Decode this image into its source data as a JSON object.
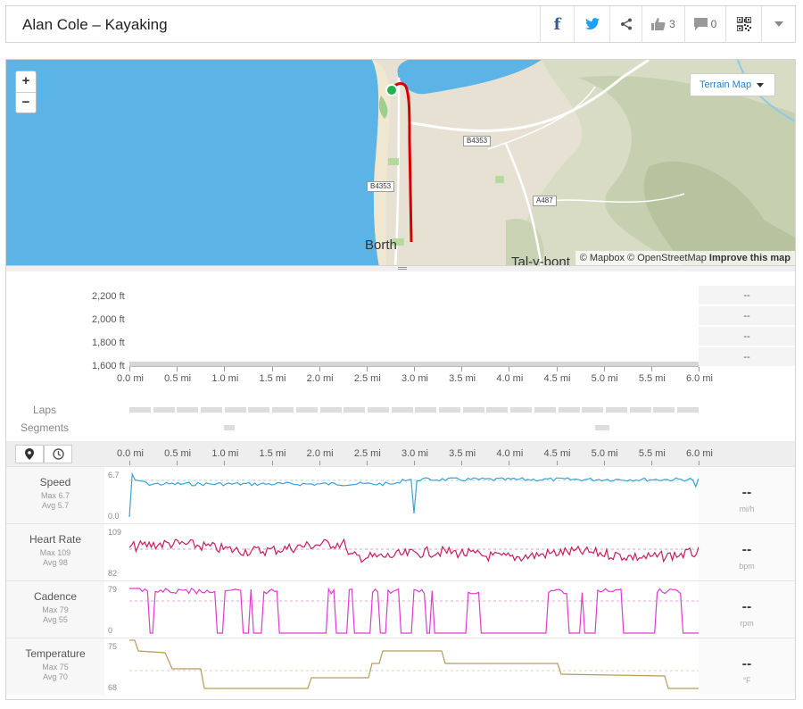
{
  "header": {
    "title": "Alan Cole – Kayaking",
    "kudos_count": "3",
    "comments_count": "0"
  },
  "icons": [
    "facebook-icon",
    "twitter-icon",
    "share-icon",
    "thumbs-up-icon",
    "comment-icon",
    "qr-code-icon",
    "chevron-down-icon",
    "location-pin-icon",
    "clock-icon"
  ],
  "map": {
    "zoom_in": "+",
    "zoom_out": "−",
    "layer_button": "Terrain Map",
    "place_borth": "Borth",
    "place_talybont": "Tal-y-bont",
    "road_b4353_a": "B4353",
    "road_b4353_b": "B4353",
    "road_a487": "A487",
    "attribution": "© Mapbox © OpenStreetMap",
    "improve": "Improve this map",
    "colors": {
      "water": "#5cb4e6",
      "land": "#e7e1d4",
      "route": "#d40000",
      "start": "#22b14c"
    }
  },
  "elevation": {
    "y_ticks": [
      "2,200 ft",
      "2,000 ft",
      "1,800 ft",
      "1,600 ft"
    ],
    "x_ticks": [
      "0.0 mi",
      "0.5 mi",
      "1.0 mi",
      "1.5 mi",
      "2.0 mi",
      "2.5 mi",
      "3.0 mi",
      "3.5 mi",
      "4.0 mi",
      "4.5 mi",
      "5.0 mi",
      "5.5 mi",
      "6.0 mi"
    ],
    "side_values": [
      "--",
      "--",
      "--",
      "--"
    ]
  },
  "laps_label": "Laps",
  "segments_label": "Segments",
  "streams_x_ticks": [
    "0.0 mi",
    "0.5 mi",
    "1.0 mi",
    "1.5 mi",
    "2.0 mi",
    "2.5 mi",
    "3.0 mi",
    "3.5 mi",
    "4.0 mi",
    "4.5 mi",
    "5.0 mi",
    "5.5 mi",
    "6.0 mi"
  ],
  "streams": [
    {
      "name": "Speed",
      "max": "Max 6.7",
      "avg": "Avg 5.7",
      "ymax": "6.7",
      "ymin": "0.0",
      "value": "--",
      "unit": "mi/h",
      "color": "#3aa2d6"
    },
    {
      "name": "Heart Rate",
      "max": "Max 109",
      "avg": "Avg 98",
      "ymax": "109",
      "ymin": "82",
      "value": "--",
      "unit": "bpm",
      "color": "#c81d5c"
    },
    {
      "name": "Cadence",
      "max": "Max 79",
      "avg": "Avg 55",
      "ymax": "79",
      "ymin": "0",
      "value": "--",
      "unit": "rpm",
      "color": "#e03ad2"
    },
    {
      "name": "Temperature",
      "max": "Max 75",
      "avg": "Avg 70",
      "ymax": "75",
      "ymin": "68",
      "value": "--",
      "unit": "°F",
      "color": "#b89a5a"
    }
  ]
}
